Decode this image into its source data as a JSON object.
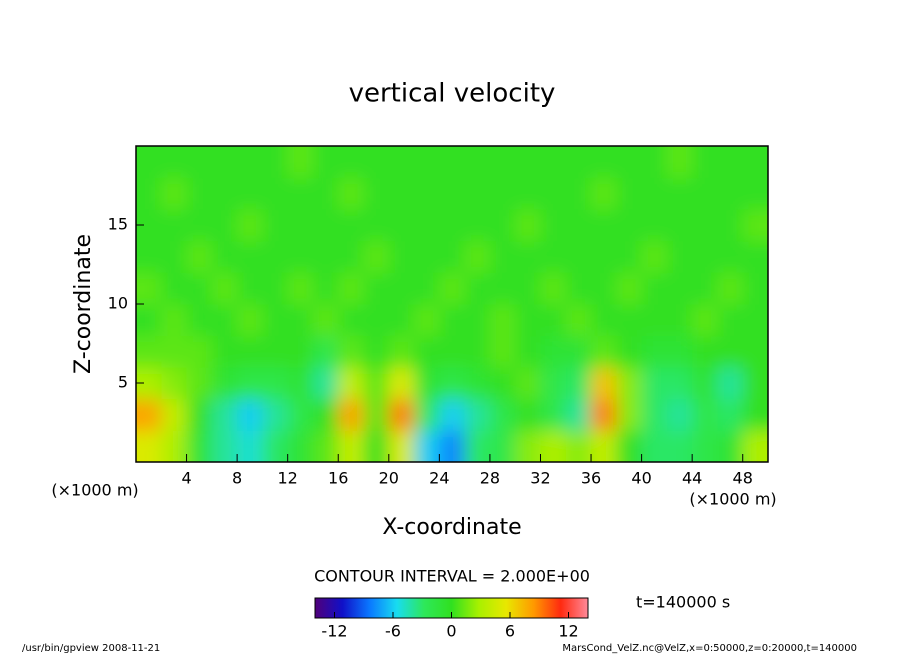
{
  "chart_data": {
    "type": "contourf",
    "title": "vertical velocity",
    "x_label": "X-coordinate",
    "y_label": "Z-coordinate",
    "x_unit": "(×1000 m)",
    "y_unit": "(×1000 m)",
    "contour_interval_label": "CONTOUR INTERVAL = 2.000E+00",
    "time_label": "t=140000 s",
    "footer_left": "/usr/bin/gpview  2008-11-21",
    "footer_right": "MarsCond_VelZ.nc@VelZ,x=0:50000,z=0:20000,t=140000",
    "xlim": [
      0,
      50
    ],
    "ylim": [
      0,
      20
    ],
    "xticks": [
      4,
      8,
      12,
      16,
      20,
      24,
      28,
      32,
      36,
      40,
      44,
      48
    ],
    "yticks": [
      5,
      10,
      15
    ],
    "clim": [
      -14,
      14
    ],
    "cticks": [
      -12,
      -6,
      0,
      6,
      12
    ],
    "colormap": [
      "#50007a",
      "#1010c8",
      "#0a78ff",
      "#18dcf0",
      "#2ee85a",
      "#30e020",
      "#a8f000",
      "#e8e800",
      "#ff9a00",
      "#ff2a10",
      "#ff8a9a"
    ],
    "x": [
      1,
      3,
      5,
      7,
      9,
      11,
      13,
      15,
      17,
      19,
      21,
      23,
      25,
      27,
      29,
      31,
      33,
      35,
      37,
      39,
      41,
      43,
      45,
      47,
      49
    ],
    "z": [
      1,
      3,
      5,
      7,
      9,
      11,
      13,
      15,
      17,
      19
    ],
    "z_values": [
      [
        5,
        3,
        -1,
        -4,
        -5,
        -3,
        -1,
        1,
        4,
        0,
        5,
        -6,
        -8,
        -3,
        -2,
        2,
        3,
        2,
        4,
        0,
        -3,
        -3,
        -2,
        -1,
        3
      ],
      [
        8,
        4,
        0,
        -4,
        -6,
        -4,
        -2,
        0,
        8,
        1,
        9,
        -3,
        -6,
        -4,
        -2,
        0,
        -2,
        -4,
        9,
        2,
        -3,
        -4,
        -2,
        -3,
        0
      ],
      [
        3,
        2,
        1,
        -1,
        -2,
        -2,
        -1,
        -4,
        4,
        1,
        5,
        -1,
        -2,
        -1,
        0,
        1,
        -2,
        -3,
        7,
        2,
        -3,
        -3,
        -1,
        -4,
        0
      ],
      [
        1,
        1,
        1,
        0,
        0,
        0,
        0,
        -2,
        1,
        0,
        1,
        0,
        0,
        0,
        1,
        0,
        -1,
        -1,
        1,
        0,
        -1,
        -1,
        0,
        0,
        0
      ],
      [
        0,
        1,
        0,
        0,
        1,
        0,
        0,
        1,
        0,
        0,
        0,
        1,
        0,
        0,
        1,
        0,
        0,
        1,
        0,
        0,
        0,
        0,
        1,
        0,
        0
      ],
      [
        1,
        0,
        0,
        1,
        0,
        0,
        1,
        0,
        1,
        0,
        0,
        0,
        1,
        0,
        0,
        0,
        1,
        0,
        0,
        1,
        0,
        0,
        0,
        1,
        0
      ],
      [
        0,
        0,
        1,
        0,
        0,
        0,
        0,
        0,
        0,
        1,
        0,
        0,
        0,
        1,
        0,
        0,
        0,
        0,
        0,
        0,
        1,
        0,
        0,
        0,
        0
      ],
      [
        0,
        0,
        0,
        0,
        1,
        0,
        0,
        0,
        0,
        0,
        0,
        0,
        0,
        0,
        0,
        1,
        0,
        0,
        0,
        0,
        0,
        0,
        0,
        0,
        1
      ],
      [
        0,
        1,
        0,
        0,
        0,
        0,
        0,
        0,
        1,
        0,
        0,
        0,
        0,
        0,
        0,
        0,
        0,
        0,
        1,
        0,
        0,
        0,
        0,
        0,
        0
      ],
      [
        0,
        0,
        0,
        0,
        0,
        0,
        1,
        0,
        0,
        0,
        0,
        0,
        0,
        0,
        0,
        0,
        0,
        0,
        0,
        0,
        0,
        1,
        0,
        0,
        0
      ]
    ]
  }
}
